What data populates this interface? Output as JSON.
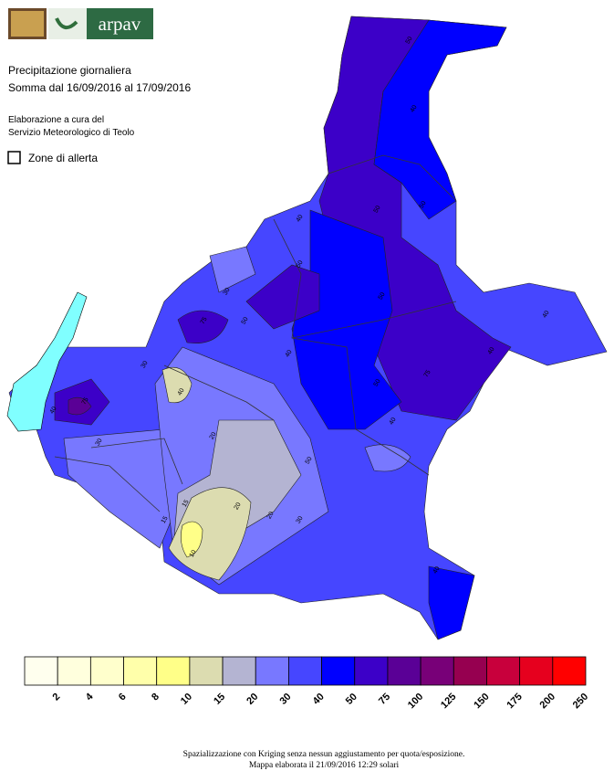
{
  "header": {
    "logo_text": "arpav",
    "title": "Precipitazione giornaliera",
    "subtitle": "Somma dal 16/09/2016 al 17/09/2016",
    "credit_line1": "Elaborazione a cura del",
    "credit_line2": "Servizio Meteorologico di Teolo",
    "toggle_label": "Zone di allerta"
  },
  "map": {
    "contour_labels": [
      "50",
      "40",
      "50",
      "50",
      "40",
      "30",
      "75",
      "50",
      "50",
      "40",
      "50",
      "75",
      "50",
      "40",
      "50",
      "40",
      "15",
      "20",
      "20",
      "10",
      "15",
      "20",
      "30",
      "40",
      "75",
      "40",
      "30",
      "40",
      "40",
      "30"
    ]
  },
  "legend": {
    "ticks": [
      2,
      4,
      6,
      8,
      10,
      15,
      20,
      30,
      40,
      50,
      75,
      100,
      125,
      150,
      175,
      200,
      250
    ],
    "colors": [
      "#ffffee",
      "#ffffdd",
      "#ffffcc",
      "#ffffaa",
      "#ffff88",
      "#dcdcb0",
      "#b4b4d2",
      "#7878ff",
      "#4646ff",
      "#0000ff",
      "#3c00c8",
      "#5a0096",
      "#780078",
      "#960050",
      "#c8003c",
      "#e6001e",
      "#ff0000"
    ]
  },
  "footer": {
    "line1": "Spazializzazione con Kriging senza nessun aggiustamento per quota/esposizione.",
    "line2": "Mappa elaborata il 21/09/2016 12:29 solari"
  }
}
